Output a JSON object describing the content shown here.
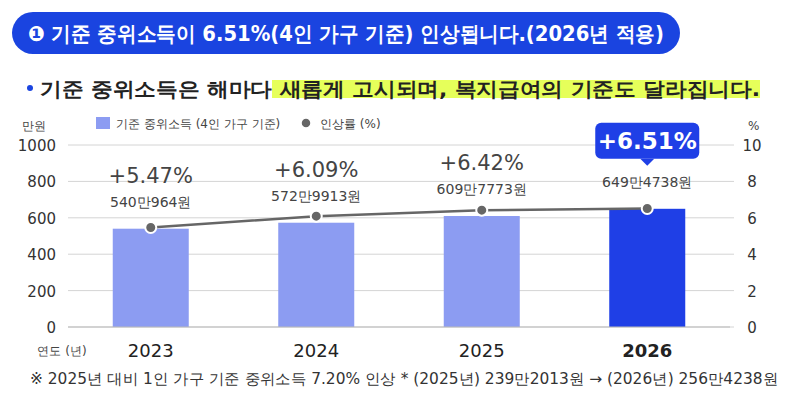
{
  "chart_data": {
    "type": "bar",
    "title": "❶ 기준 중위소득이 6.51%(4인 가구 기준) 인상됩니다.(2026년 적용)",
    "subtitle": "기준 중위소득은 해마다 새롭게 고시되며, 복지급여의 기준도 달라집니다.",
    "annotations": [
      "※ 2025년 대비 1인 가구 기준 중위소득 7.20% 인상 * (2025년) 239만2013원 → (2026년) 256만4238원"
    ],
    "x_label": "연도 (년)",
    "y_label": "만원",
    "y2_label": "%",
    "categories": [
      "2023",
      "2024",
      "2025",
      "2026"
    ],
    "series": [
      {
        "name": "기준 중위소득 (4인 가구 기준)",
        "type": "bar",
        "colors": [
          "#8c9cf2",
          "#8c9cf2",
          "#8c9cf2",
          "#1f3fe6"
        ],
        "values": [
          540.0964,
          572.9913,
          609.7773,
          649.4738
        ],
        "value_labels": [
          "540만964원",
          "572만9913원",
          "609만7773원",
          "649만4738원"
        ]
      },
      {
        "name": "인상률 (%)",
        "type": "line",
        "axis": "y2",
        "color": "#666666",
        "marker": "circle",
        "values": [
          5.47,
          6.09,
          6.42,
          6.51
        ],
        "value_labels": [
          "+5.47%",
          "+6.09%",
          "+6.42%",
          "+6.51%"
        ]
      }
    ],
    "ylim": [
      0,
      1000
    ],
    "yticks": [
      0,
      200,
      400,
      600,
      800,
      1000
    ],
    "y2lim": [
      0,
      10
    ],
    "y2ticks": [
      0,
      2,
      4,
      6,
      8,
      10
    ],
    "grid": true,
    "data_labels": true,
    "legend": "top-left"
  }
}
